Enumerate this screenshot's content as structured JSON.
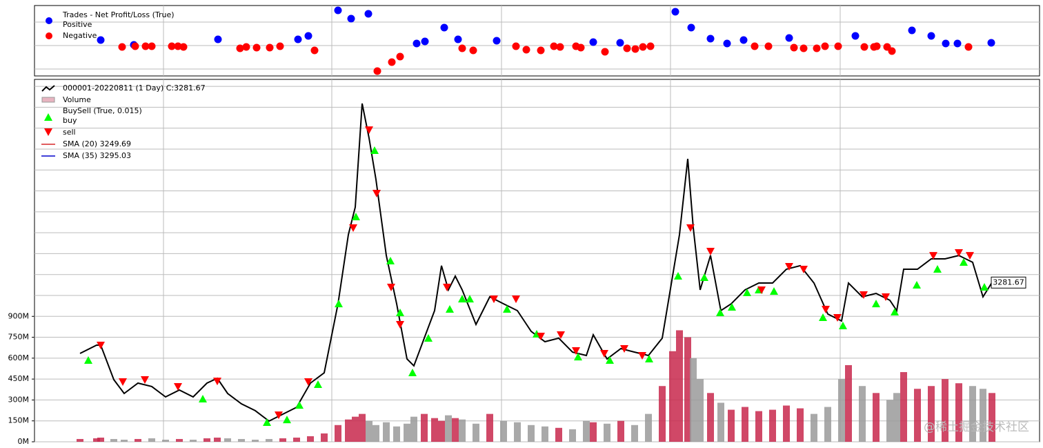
{
  "chart_data": [
    {
      "type": "scatter",
      "title": "Trades - Net Profit/Loss (True)",
      "xlim": [
        -66,
        1391
      ],
      "ylim": [
        -44,
        58
      ],
      "series": [
        {
          "name": "Positive",
          "color": "#0000ff",
          "x": [
            30,
            78,
            200,
            316,
            331,
            374,
            393,
            418,
            488,
            500,
            528,
            548,
            604,
            744,
            783,
            863,
            886,
            914,
            938,
            962,
            1028,
            1124,
            1206,
            1234,
            1255,
            1272,
            1321
          ],
          "values": [
            8,
            1,
            9,
            9,
            14,
            51,
            39,
            46,
            3,
            6,
            26,
            9,
            7,
            5,
            4,
            49,
            26,
            10,
            3,
            8,
            11,
            14,
            22,
            14,
            3,
            3,
            4
          ]
        },
        {
          "name": "Negative",
          "color": "#ff0000",
          "x": [
            61,
            80,
            95,
            104,
            133,
            142,
            150,
            232,
            241,
            256,
            275,
            290,
            340,
            431,
            452,
            464,
            554,
            570,
            632,
            647,
            668,
            687,
            696,
            719,
            726,
            761,
            793,
            805,
            816,
            827,
            978,
            998,
            1035,
            1049,
            1068,
            1080,
            1099,
            1137,
            1151,
            1155,
            1170,
            1177,
            1288
          ],
          "values": [
            -2,
            -1,
            -1,
            -1,
            -1,
            -1,
            -2,
            -4,
            -2,
            -3,
            -3,
            -1,
            -7,
            -37,
            -24,
            -16,
            -4,
            -7,
            -1,
            -6,
            -7,
            -1,
            -2,
            -1,
            -3,
            -9,
            -4,
            -5,
            -2,
            -1,
            -1,
            -1,
            -3,
            -4,
            -4,
            -1,
            -1,
            -2,
            -2,
            -1,
            -2,
            -8,
            -2
          ]
        }
      ]
    },
    {
      "type": "line",
      "xlim": [
        -66,
        1391
      ],
      "ylim": [
        1700,
        5300
      ],
      "volume_ylim": [
        0,
        2600
      ],
      "volume_yticks": [
        {
          "value": 0,
          "label": "0M"
        },
        {
          "value": 150,
          "label": "150M"
        },
        {
          "value": 300,
          "label": "300M"
        },
        {
          "value": 450,
          "label": "450M"
        },
        {
          "value": 600,
          "label": "600M"
        },
        {
          "value": 750,
          "label": "750M"
        },
        {
          "value": 900,
          "label": "900M"
        }
      ],
      "x": [
        0,
        24,
        30,
        49,
        64,
        84,
        104,
        124,
        144,
        164,
        184,
        199,
        214,
        234,
        254,
        274,
        294,
        314,
        334,
        354,
        374,
        389,
        399,
        409,
        419,
        429,
        444,
        459,
        474,
        484,
        499,
        514,
        524,
        534,
        544,
        554,
        574,
        594,
        614,
        634,
        654,
        674,
        694,
        714,
        734,
        744,
        764,
        784,
        804,
        824,
        844,
        859,
        869,
        881,
        889,
        899,
        914,
        929,
        944,
        964,
        984,
        1004,
        1024,
        1044,
        1064,
        1084,
        1104,
        1114,
        1134,
        1154,
        1174,
        1184,
        1194,
        1214,
        1234,
        1254,
        1274,
        1294,
        1309,
        1322
      ],
      "close": {
        "name": "000001-20220811 (1 Day) C:3281.67",
        "color": "#000000",
        "values": [
          2578,
          2660,
          2660,
          2317,
          2180,
          2283,
          2249,
          2146,
          2214,
          2146,
          2283,
          2331,
          2180,
          2077,
          2009,
          1906,
          1974,
          2043,
          2283,
          2386,
          3071,
          3757,
          4031,
          5060,
          4717,
          4306,
          3551,
          3071,
          2523,
          2454,
          2729,
          3003,
          3449,
          3209,
          3346,
          3209,
          2866,
          3140,
          3071,
          3003,
          2797,
          2694,
          2729,
          2591,
          2557,
          2763,
          2523,
          2626,
          2591,
          2557,
          2729,
          3346,
          3757,
          4511,
          3826,
          3209,
          3551,
          3003,
          3071,
          3209,
          3277,
          3277,
          3414,
          3449,
          3277,
          2969,
          2900,
          3277,
          3140,
          3174,
          3106,
          3003,
          3414,
          3414,
          3517,
          3517,
          3551,
          3483,
          3140,
          3281.67
        ]
      },
      "volume": {
        "name": "Volume",
        "up_color": "#c8284c",
        "down_color": "#9a9a9a",
        "values": [
          20,
          25,
          30,
          20,
          15,
          20,
          25,
          15,
          20,
          15,
          25,
          30,
          25,
          20,
          15,
          20,
          25,
          30,
          40,
          60,
          120,
          160,
          180,
          200,
          150,
          120,
          140,
          110,
          130,
          180,
          200,
          170,
          150,
          190,
          170,
          160,
          130,
          200,
          150,
          140,
          120,
          110,
          100,
          90,
          150,
          140,
          130,
          150,
          120,
          200,
          400,
          650,
          800,
          750,
          600,
          450,
          350,
          280,
          230,
          250,
          220,
          230,
          260,
          240,
          200,
          250,
          450,
          550,
          400,
          350,
          300,
          350,
          500,
          380,
          400,
          450,
          420,
          400,
          380,
          350
        ]
      },
      "buysell_title": "BuySell (True, 0.015)",
      "buy": {
        "name": "buy",
        "color": "#00ff00",
        "x": [
          12,
          178,
          271,
          300,
          318,
          345,
          375,
          400,
          427,
          450,
          464,
          482,
          505,
          536,
          554,
          565,
          619,
          662,
          722,
          768,
          825,
          867,
          905,
          928,
          945,
          967,
          984,
          1006,
          1077,
          1106,
          1154,
          1181,
          1213,
          1243,
          1281,
          1311
        ],
        "values": [
          2509,
          2125,
          1892,
          1919,
          2063,
          2269,
          3071,
          3935,
          4594,
          3497,
          2982,
          2386,
          2729,
          3017,
          3119,
          3119,
          3017,
          2770,
          2543,
          2509,
          2523,
          3346,
          3332,
          2982,
          3037,
          3181,
          3209,
          3195,
          2934,
          2852,
          3071,
          2989,
          3257,
          3414,
          3483,
          3236
        ]
      },
      "sell": {
        "name": "sell",
        "color": "#ff0000",
        "x": [
          30,
          62,
          94,
          142,
          199,
          288,
          331,
          396,
          419,
          430,
          451,
          464,
          532,
          600,
          632,
          668,
          697,
          719,
          760,
          789,
          815,
          885,
          914,
          988,
          1028,
          1049,
          1081,
          1098,
          1136,
          1168,
          1237,
          1274,
          1290
        ],
        "values": [
          2660,
          2297,
          2317,
          2249,
          2303,
          1967,
          2297,
          3826,
          4799,
          4169,
          3236,
          2866,
          3236,
          3119,
          3119,
          2749,
          2763,
          2605,
          2578,
          2626,
          2557,
          3826,
          3593,
          3209,
          3442,
          3414,
          3017,
          2934,
          3161,
          3140,
          3551,
          3579,
          3551
        ]
      },
      "sma": [
        {
          "name": "SMA (20) 3249.69",
          "color": "#d62728"
        },
        {
          "name": "SMA (35) 3295.03",
          "color": "#0000cc"
        }
      ]
    }
  ],
  "watermark": "@稀土掘金技术社区"
}
